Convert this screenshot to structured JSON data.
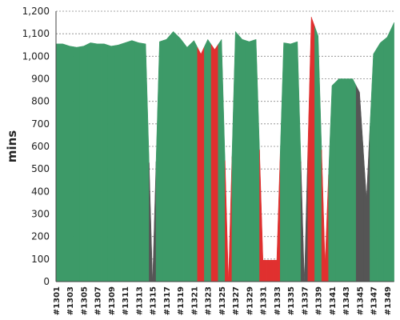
{
  "chart_data": {
    "type": "area",
    "y_label": "mins",
    "categories": [
      "#1301",
      null,
      "#1303",
      null,
      "#1305",
      null,
      "#1307",
      null,
      "#1309",
      null,
      "#1311",
      null,
      "#1313",
      null,
      "#1315",
      null,
      "#1317",
      null,
      "#1319",
      null,
      "#1321",
      null,
      "#1323",
      null,
      "#1325",
      null,
      "#1327",
      null,
      "#1329",
      null,
      "#1331",
      null,
      "#1333",
      null,
      "#1335",
      null,
      "#1337",
      null,
      "#1339",
      null,
      "#1341",
      null,
      "#1343",
      null,
      "#1345",
      null,
      "#1347",
      null,
      "#1349",
      null
    ],
    "values": [
      1055,
      1055,
      1045,
      1040,
      1045,
      1060,
      1055,
      1055,
      1045,
      1050,
      1060,
      1070,
      1060,
      1055,
      0,
      1065,
      1075,
      1110,
      1080,
      1040,
      1070,
      1010,
      1075,
      1030,
      1075,
      0,
      1110,
      1075,
      1065,
      1075,
      95,
      95,
      95,
      1060,
      1055,
      1065,
      0,
      1175,
      1090,
      80,
      870,
      900,
      900,
      900,
      840,
      370,
      1010,
      1060,
      1085,
      1150
    ],
    "colors": [
      "#3d9a68",
      "#3d9a68",
      "#3d9a68",
      "#3d9a68",
      "#3d9a68",
      "#3d9a68",
      "#3d9a68",
      "#3d9a68",
      "#3d9a68",
      "#3d9a68",
      "#3d9a68",
      "#3d9a68",
      "#3d9a68",
      "#3d9a68",
      "#555555",
      "#3d9a68",
      "#3d9a68",
      "#3d9a68",
      "#3d9a68",
      "#3d9a68",
      "#3d9a68",
      "#e0302f",
      "#3d9a68",
      "#e0302f",
      "#3d9a68",
      "#e0302f",
      "#3d9a68",
      "#3d9a68",
      "#3d9a68",
      "#3d9a68",
      "#e0302f",
      "#e0302f",
      "#e0302f",
      "#3d9a68",
      "#3d9a68",
      "#3d9a68",
      "#555555",
      "#e0302f",
      "#3d9a68",
      "#e0302f",
      "#3d9a68",
      "#3d9a68",
      "#3d9a68",
      "#3d9a68",
      "#555555",
      "#555555",
      "#3d9a68",
      "#3d9a68",
      "#3d9a68",
      "#3d9a68"
    ],
    "ylim": [
      0,
      1200
    ],
    "yticks": [
      0,
      100,
      200,
      300,
      400,
      500,
      600,
      700,
      800,
      900,
      {
        "value": 1000,
        "label": "1,000"
      },
      {
        "value": 1100,
        "label": "1,100"
      },
      {
        "value": 1200,
        "label": "1,200"
      }
    ],
    "grid": true
  }
}
